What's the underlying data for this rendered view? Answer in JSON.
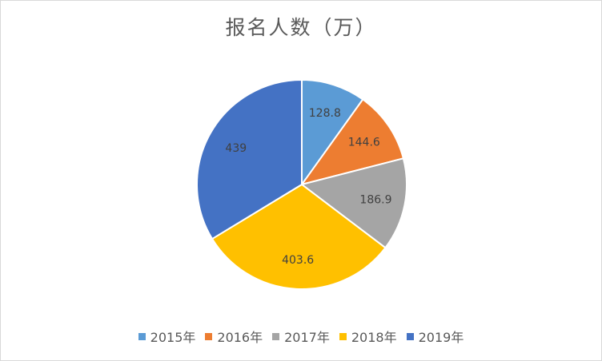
{
  "chart_data": {
    "type": "pie",
    "title": "报名人数（万）",
    "categories": [
      "2015年",
      "2016年",
      "2017年",
      "2018年",
      "2019年"
    ],
    "values": [
      128.8,
      144.6,
      186.9,
      403.6,
      439
    ],
    "data_labels": [
      "128.8",
      "144.6",
      "186.9",
      "403.6",
      "439"
    ],
    "colors": [
      "#5b9bd5",
      "#ed7d31",
      "#a5a5a5",
      "#ffc000",
      "#4472c4"
    ],
    "start_angle": "top, clockwise",
    "legend_position": "bottom"
  }
}
